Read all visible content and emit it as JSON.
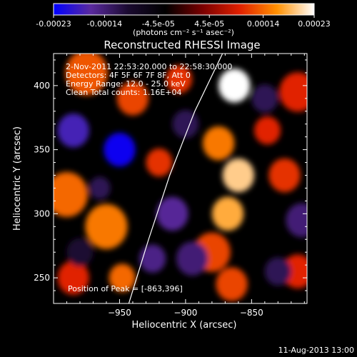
{
  "colorbar": {
    "ticks": [
      "-0.00023",
      "-0.00014",
      "-4.5e-05",
      "4.5e-05",
      "0.00014",
      "0.00023"
    ],
    "unit_label": "(photons cm⁻² s⁻¹ asec⁻²)",
    "range": [
      -0.00023,
      0.00023
    ]
  },
  "chart_data": {
    "type": "heatmap",
    "title": "Reconstructed RHESSI Image",
    "xlabel": "Heliocentric X (arcsec)",
    "ylabel": "Heliocentric Y (arcsec)",
    "xlim": [
      -1000,
      -808
    ],
    "ylim": [
      230,
      425
    ],
    "x_ticks": [
      -950,
      -900,
      -850
    ],
    "y_ticks": [
      250,
      300,
      350,
      400
    ],
    "x_tick_labels": [
      "−950",
      "−900",
      "−850"
    ],
    "y_tick_labels": [
      "250",
      "300",
      "350",
      "400"
    ],
    "info_lines": [
      "2-Nov-2011 22:53:20.000 to 22:58:30.000",
      "Detectors: 4F 5F 6F 7F 8F, Att 0",
      "Energy Range: 12.0 - 25.0 keV",
      "Clean    Total counts: 1.16E+04"
    ],
    "peak_label": "Position of Peak = [-863,396]",
    "peak": [
      -863,
      396
    ],
    "colormap": [
      "#0000ff",
      "#5a2a9e",
      "#1a0a30",
      "#000000",
      "#7a0000",
      "#e02000",
      "#ff9000",
      "#ffffff"
    ],
    "limb_curve": [
      [
        -943,
        230
      ],
      [
        -928,
        280
      ],
      [
        -912,
        330
      ],
      [
        -893,
        380
      ],
      [
        -872,
        425
      ]
    ],
    "blobs": [
      {
        "x": -863,
        "y": 400,
        "r": 12,
        "v": 0.00023
      },
      {
        "x": -975,
        "y": 410,
        "r": 16,
        "v": 0.00013
      },
      {
        "x": -940,
        "y": 390,
        "r": 12,
        "v": 0.00012
      },
      {
        "x": -905,
        "y": 405,
        "r": 10,
        "v": 0.00011
      },
      {
        "x": -860,
        "y": 330,
        "r": 12,
        "v": 0.0002
      },
      {
        "x": -868,
        "y": 300,
        "r": 12,
        "v": 0.00018
      },
      {
        "x": -875,
        "y": 355,
        "r": 12,
        "v": 0.00015
      },
      {
        "x": -880,
        "y": 270,
        "r": 14,
        "v": 0.00012
      },
      {
        "x": -865,
        "y": 245,
        "r": 12,
        "v": 0.00012
      },
      {
        "x": -960,
        "y": 290,
        "r": 16,
        "v": 0.00015
      },
      {
        "x": -990,
        "y": 315,
        "r": 16,
        "v": 0.00014
      },
      {
        "x": -948,
        "y": 250,
        "r": 10,
        "v": 0.00014
      },
      {
        "x": -985,
        "y": 250,
        "r": 12,
        "v": 0.0001
      },
      {
        "x": -920,
        "y": 340,
        "r": 10,
        "v": 0.00011
      },
      {
        "x": -815,
        "y": 395,
        "r": 14,
        "v": 0.0001
      },
      {
        "x": -825,
        "y": 330,
        "r": 12,
        "v": 0.00011
      },
      {
        "x": -815,
        "y": 255,
        "r": 12,
        "v": 0.0001
      },
      {
        "x": -838,
        "y": 365,
        "r": 10,
        "v": 0.0001
      },
      {
        "x": -950,
        "y": 350,
        "r": 12,
        "v": -0.00022
      },
      {
        "x": -985,
        "y": 365,
        "r": 12,
        "v": -0.00018
      },
      {
        "x": -910,
        "y": 300,
        "r": 12,
        "v": -0.00016
      },
      {
        "x": -895,
        "y": 265,
        "r": 12,
        "v": -0.00014
      },
      {
        "x": -925,
        "y": 265,
        "r": 10,
        "v": -0.00015
      },
      {
        "x": -840,
        "y": 390,
        "r": 10,
        "v": -0.00012
      },
      {
        "x": -812,
        "y": 295,
        "r": 12,
        "v": -0.00014
      },
      {
        "x": -830,
        "y": 255,
        "r": 10,
        "v": -0.00012
      },
      {
        "x": -965,
        "y": 320,
        "r": 8,
        "v": -0.00012
      },
      {
        "x": -900,
        "y": 370,
        "r": 10,
        "v": -0.00012
      },
      {
        "x": -980,
        "y": 270,
        "r": 10,
        "v": -0.0001
      }
    ]
  },
  "footer": {
    "date": "11-Aug-2013 13:00"
  }
}
